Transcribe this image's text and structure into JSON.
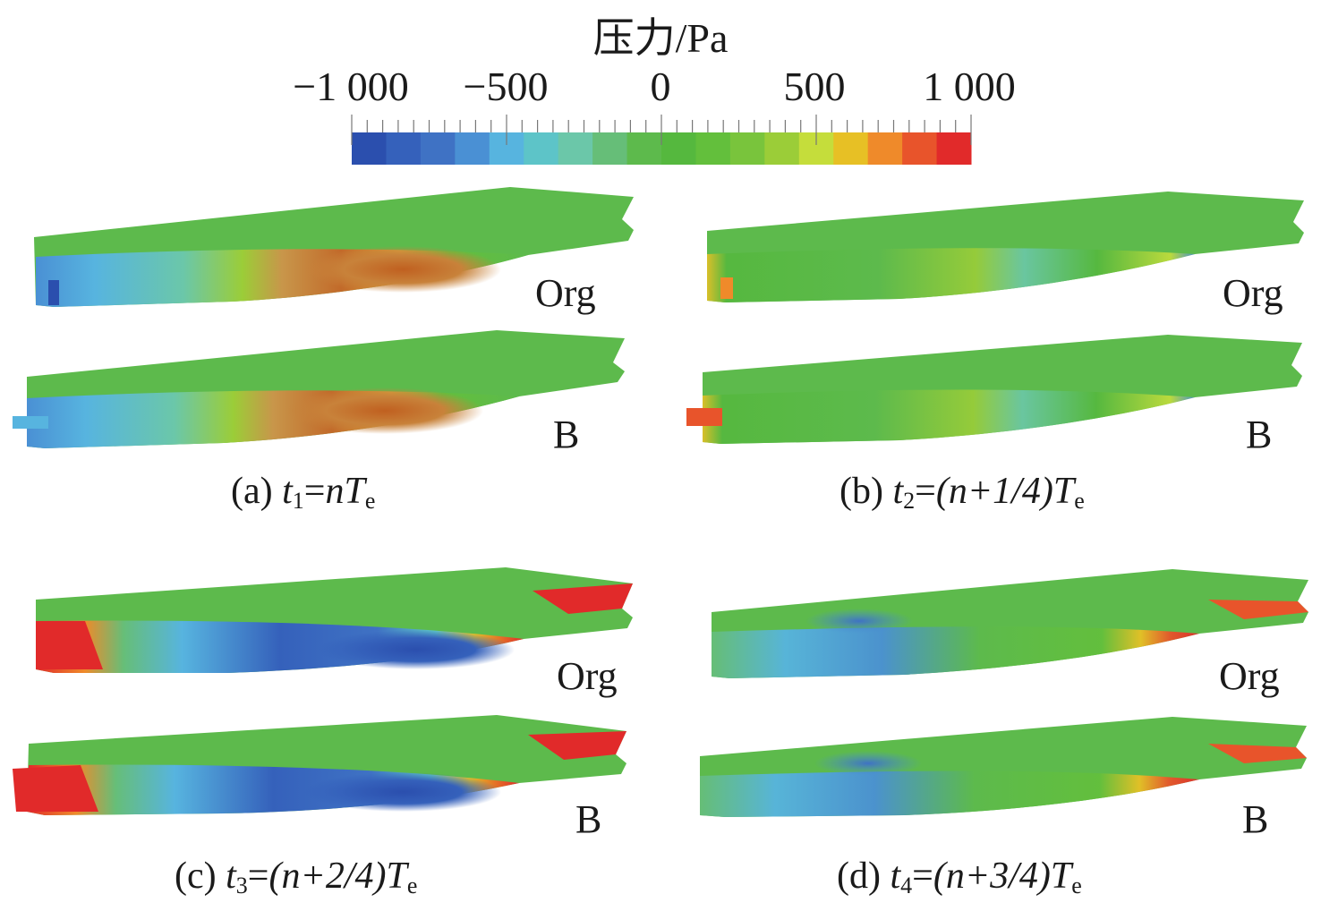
{
  "colorbar": {
    "title": "压力/Pa",
    "ticks": [
      "−1 000",
      "−500",
      "0",
      "500",
      "1 000"
    ],
    "colors": [
      "#2b4fae",
      "#3561bb",
      "#3f72c4",
      "#4a90d4",
      "#57b4df",
      "#5dc4c8",
      "#6bc7a9",
      "#66be78",
      "#5dba4c",
      "#55b83e",
      "#63bf3c",
      "#79c43c",
      "#9bcd38",
      "#c5dd3b",
      "#e7c025",
      "#ef8a2a",
      "#e8542b",
      "#e12a2a"
    ]
  },
  "panels": [
    {
      "id": "a",
      "label": "(a) ",
      "t": "t",
      "t_sub": "1",
      "eq": "=",
      "expr": "nT",
      "expr_sub": "e",
      "top": "Org",
      "bottom": "B"
    },
    {
      "id": "b",
      "label": "(b) ",
      "t": "t",
      "t_sub": "2",
      "eq": "=",
      "expr": "(n+1/4)T",
      "expr_sub": "e",
      "top": "Org",
      "bottom": "B"
    },
    {
      "id": "c",
      "label": "(c) ",
      "t": "t",
      "t_sub": "3",
      "eq": "=",
      "expr": "(n+2/4)T",
      "expr_sub": "e",
      "top": "Org",
      "bottom": "B"
    },
    {
      "id": "d",
      "label": "(d) ",
      "t": "t",
      "t_sub": "4",
      "eq": "=",
      "expr": "(n+3/4)T",
      "expr_sub": "e",
      "top": "Org",
      "bottom": "B"
    }
  ]
}
